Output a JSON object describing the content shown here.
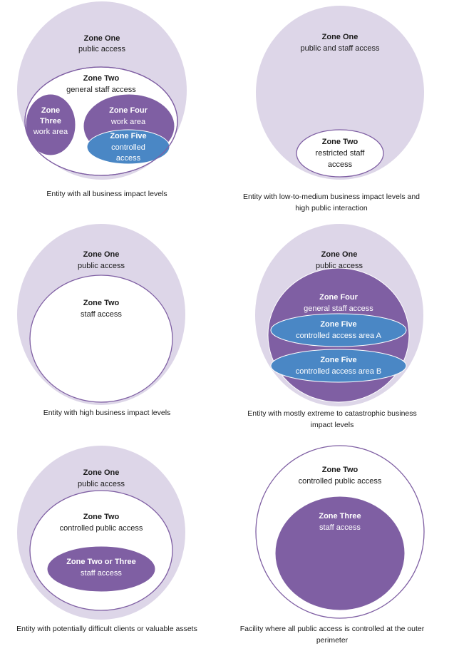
{
  "colors": {
    "zone_one_fill": "#ddd6e8",
    "zone_outline": "#7f5fa3",
    "purple_zone_fill": "#7f5fa3",
    "blue_zone_fill": "#4a87c5",
    "white_zone_fill": "#ffffff"
  },
  "diagrams": [
    {
      "caption": [
        "Entity with all business impact levels"
      ],
      "zones": {
        "outer": {
          "title": "Zone One",
          "sub": [
            "public access"
          ]
        },
        "mid": {
          "title": "Zone Two",
          "sub": [
            "general staff access"
          ]
        },
        "left": {
          "title": [
            "Zone",
            "Three"
          ],
          "sub": [
            "work area"
          ]
        },
        "right": {
          "title": "Zone Four",
          "sub": [
            "work area"
          ]
        },
        "inner": {
          "title": "Zone Five",
          "sub": [
            "controlled",
            "access"
          ]
        }
      }
    },
    {
      "caption": [
        "Entity with low-to-medium business impact levels and",
        "high public interaction"
      ],
      "zones": {
        "outer": {
          "title": "Zone One",
          "sub": [
            "public and staff access"
          ]
        },
        "inner": {
          "title": "Zone Two",
          "sub": [
            "restricted staff",
            "access"
          ]
        }
      }
    },
    {
      "caption": [
        "Entity with high business impact levels"
      ],
      "zones": {
        "outer": {
          "title": "Zone One",
          "sub": [
            "public access"
          ]
        },
        "inner": {
          "title": "Zone Two",
          "sub": [
            "staff access"
          ]
        }
      }
    },
    {
      "caption": [
        "Entity with mostly extreme to catastrophic business",
        "impact levels"
      ],
      "zones": {
        "outer": {
          "title": "Zone One",
          "sub": [
            "public access"
          ]
        },
        "mid": {
          "title": "Zone Four",
          "sub": [
            "general staff access"
          ]
        },
        "a": {
          "title": "Zone Five",
          "sub": [
            "controlled access area A"
          ]
        },
        "b": {
          "title": "Zone Five",
          "sub": [
            "controlled access area B"
          ]
        }
      }
    },
    {
      "caption": [
        "Entity with potentially difficult clients or valuable assets"
      ],
      "zones": {
        "outer": {
          "title": "Zone One",
          "sub": [
            "public access"
          ]
        },
        "mid": {
          "title": "Zone Two",
          "sub": [
            "controlled public access"
          ]
        },
        "inner": {
          "title": "Zone Two or Three",
          "sub": [
            "staff access"
          ]
        }
      }
    },
    {
      "caption": [
        "Facility where all public access is controlled at the outer",
        "perimeter"
      ],
      "zones": {
        "outer": {
          "title": "Zone Two",
          "sub": [
            "controlled public access"
          ]
        },
        "inner": {
          "title": "Zone Three",
          "sub": [
            "staff access"
          ]
        }
      }
    }
  ]
}
